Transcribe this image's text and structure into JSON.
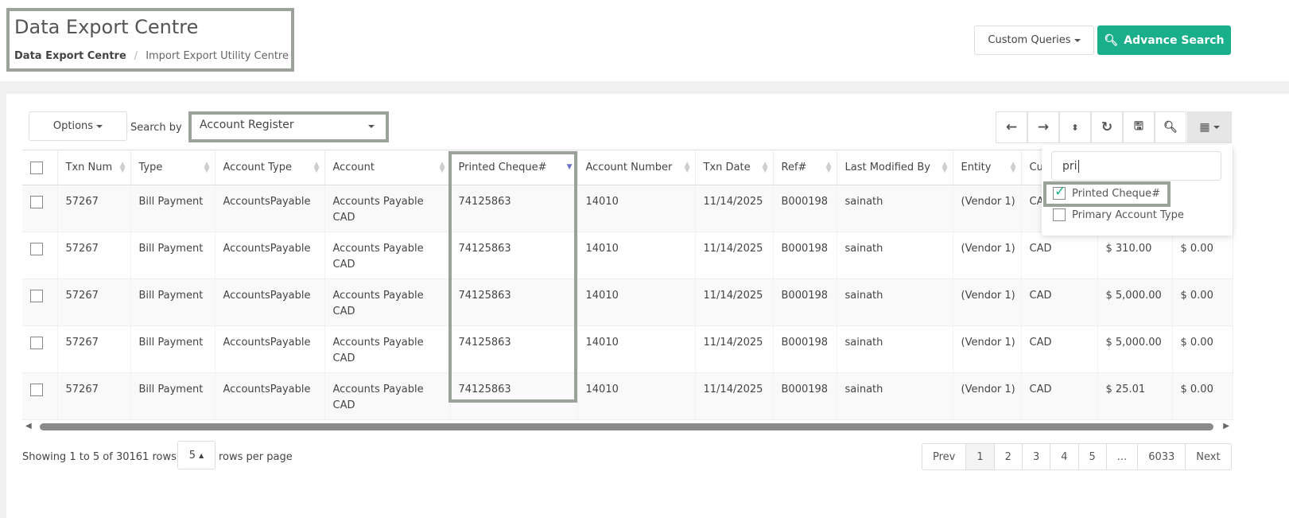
{
  "header": {
    "title": "Data Export Centre",
    "breadcrumb": [
      "Data Export Centre",
      "Import Export Utility Centre"
    ],
    "custom_queries": "Custom Queries",
    "advance_search": "Advance Search"
  },
  "colors": {
    "accent": "#1aaf8b",
    "highlight": "#9aa29a"
  },
  "toolbar": {
    "options": "Options",
    "search_by_label": "Search by",
    "search_by_value": "Account Register",
    "icons": [
      "arrow-left-icon",
      "arrow-right-icon",
      "sort-icon",
      "refresh-icon",
      "save-icon",
      "search-icon",
      "columns-grid-icon"
    ]
  },
  "table": {
    "columns": [
      "Txn Num",
      "Type",
      "Account Type",
      "Account",
      "Printed Cheque#",
      "Account Number",
      "Txn Date",
      "Ref#",
      "Last Modified By",
      "Entity",
      "Cu",
      "",
      ""
    ],
    "rows": [
      [
        "57267",
        "Bill Payment",
        "AccountsPayable",
        "Accounts Payable CAD",
        "74125863",
        "14010",
        "11/14/2025",
        "B000198",
        "sainath",
        "(Vendor 1)",
        "CAD",
        "",
        ""
      ],
      [
        "57267",
        "Bill Payment",
        "AccountsPayable",
        "Accounts Payable CAD",
        "74125863",
        "14010",
        "11/14/2025",
        "B000198",
        "sainath",
        "(Vendor 1)",
        "CAD",
        "$ 310.00",
        "$ 0.00"
      ],
      [
        "57267",
        "Bill Payment",
        "AccountsPayable",
        "Accounts Payable CAD",
        "74125863",
        "14010",
        "11/14/2025",
        "B000198",
        "sainath",
        "(Vendor 1)",
        "CAD",
        "$ 5,000.00",
        "$ 0.00"
      ],
      [
        "57267",
        "Bill Payment",
        "AccountsPayable",
        "Accounts Payable CAD",
        "74125863",
        "14010",
        "11/14/2025",
        "B000198",
        "sainath",
        "(Vendor 1)",
        "CAD",
        "$ 5,000.00",
        "$ 0.00"
      ],
      [
        "57267",
        "Bill Payment",
        "AccountsPayable",
        "Accounts Payable CAD",
        "74125863",
        "14010",
        "11/14/2025",
        "B000198",
        "sainath",
        "(Vendor 1)",
        "CAD",
        "$ 25.01",
        "$ 0.00"
      ]
    ]
  },
  "column_picker": {
    "search_value": "pri",
    "items": [
      {
        "label": "Printed Cheque#",
        "checked": true
      },
      {
        "label": "Primary Account Type",
        "checked": false
      }
    ]
  },
  "footer": {
    "showing": "Showing 1 to 5 of 30161 rows",
    "page_size": "5",
    "rows_per_page": "rows per page",
    "pages": [
      "Prev",
      "1",
      "2",
      "3",
      "4",
      "5",
      "...",
      "6033",
      "Next"
    ],
    "active_page": "1"
  }
}
